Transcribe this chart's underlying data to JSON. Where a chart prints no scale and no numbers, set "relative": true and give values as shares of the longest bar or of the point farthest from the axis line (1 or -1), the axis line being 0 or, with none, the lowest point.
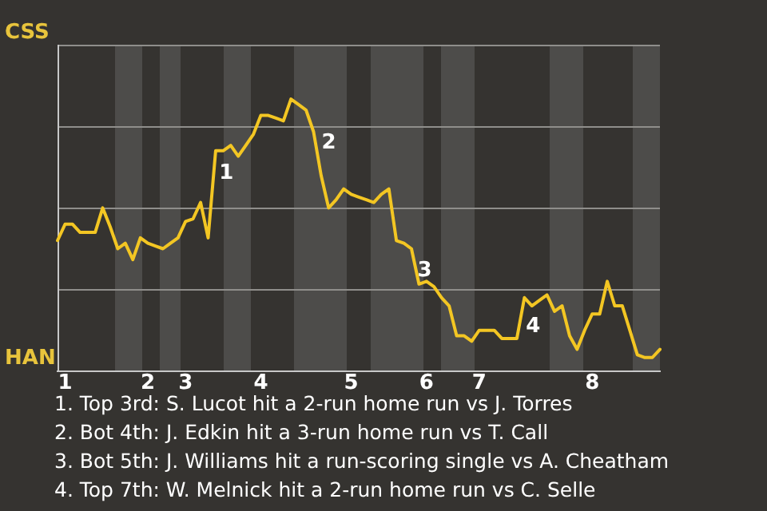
{
  "chart_data": {
    "type": "line",
    "relative": true,
    "grid": "y",
    "legend": false,
    "marker": "none",
    "line_style": "solid",
    "categories": [
      null,
      "1",
      null,
      null,
      null,
      null,
      null,
      null,
      null,
      null,
      null,
      null,
      "2",
      null,
      null,
      null,
      null,
      "3",
      null,
      null,
      null,
      null,
      null,
      null,
      null,
      null,
      null,
      "4",
      null,
      null,
      null,
      null,
      null,
      null,
      null,
      null,
      null,
      null,
      null,
      "5",
      null,
      null,
      null,
      null,
      null,
      null,
      null,
      null,
      null,
      "6",
      null,
      null,
      null,
      null,
      null,
      null,
      "7",
      null,
      null,
      null,
      null,
      null,
      null,
      null,
      null,
      null,
      null,
      null,
      null,
      null,
      null,
      "8",
      null,
      null,
      null,
      null,
      null,
      null,
      null,
      null,
      null
    ],
    "series": [
      {
        "color": "#f3c623",
        "values": [
          0.48,
          0.54,
          0.54,
          0.51,
          0.51,
          0.51,
          0.6,
          0.53,
          0.45,
          0.47,
          0.41,
          0.49,
          0.47,
          0.46,
          0.45,
          0.47,
          0.49,
          0.55,
          0.56,
          0.62,
          0.49,
          0.81,
          0.81,
          0.83,
          0.79,
          0.83,
          0.87,
          0.94,
          0.94,
          0.93,
          0.92,
          1,
          0.98,
          0.96,
          0.88,
          0.72,
          0.6,
          0.63,
          0.67,
          0.65,
          0.64,
          0.63,
          0.62,
          0.65,
          0.67,
          0.48,
          0.47,
          0.45,
          0.32,
          0.33,
          0.31,
          0.27,
          0.24,
          0.13,
          0.13,
          0.11,
          0.15,
          0.15,
          0.15,
          0.12,
          0.12,
          0.12,
          0.27,
          0.24,
          0.26,
          0.28,
          0.22,
          0.24,
          0.13,
          0.08,
          0.15,
          0.21,
          0.21,
          0.33,
          0.24,
          0.24,
          0.15,
          0.06,
          0.05,
          0.05,
          0.08
        ]
      }
    ],
    "annotations": [
      "CSS",
      "HAN",
      "1",
      "2",
      "3",
      "4",
      "1. Top 3rd: S. Lucot hit a 2-run home run vs J. Torres",
      "2. Bot 4th: J. Edkin hit a 3-run home run vs T. Call",
      "3. Bot 5th: J. Williams hit a run-scoring single vs A. Cheatham",
      "4. Top 7th: W. Melnick hit a 2-run home run vs C. Selle"
    ]
  }
}
